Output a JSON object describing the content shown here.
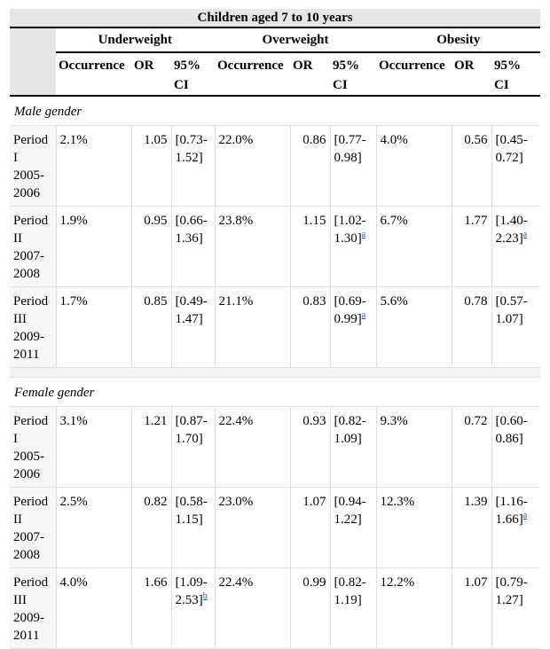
{
  "table": {
    "title": "Children aged 7 to 10 years",
    "groups": [
      "Underweight",
      "Overweight",
      "Obesity"
    ],
    "subheaders": [
      "Occurrence",
      "OR",
      "95% CI"
    ],
    "sections": [
      {
        "label": "Male gender",
        "rows": [
          {
            "period": "Period I 2005-2006",
            "uw": {
              "occ": "2.1%",
              "or": "1.05",
              "ci": "[0.73-1.52]",
              "fn": ""
            },
            "ow": {
              "occ": "22.0%",
              "or": "0.86",
              "ci": "[0.77-0.98]",
              "fn": ""
            },
            "ob": {
              "occ": "4.0%",
              "or": "0.56",
              "ci": "[0.45-0.72]",
              "fn": ""
            }
          },
          {
            "period": "Period II 2007-2008",
            "uw": {
              "occ": "1.9%",
              "or": "0.95",
              "ci": "[0.66-1.36]",
              "fn": ""
            },
            "ow": {
              "occ": "23.8%",
              "or": "1.15",
              "ci": "[1.02-1.30]",
              "fn": "a"
            },
            "ob": {
              "occ": "6.7%",
              "or": "1.77",
              "ci": "[1.40-2.23]",
              "fn": "a"
            }
          },
          {
            "period": "Period III 2009-2011",
            "uw": {
              "occ": "1.7%",
              "or": "0.85",
              "ci": "[0.49-1.47]",
              "fn": ""
            },
            "ow": {
              "occ": "21.1%",
              "or": "0.83",
              "ci": "[0.69-0.99]",
              "fn": "a"
            },
            "ob": {
              "occ": "5.6%",
              "or": "0.78",
              "ci": "[0.57-1.07]",
              "fn": ""
            }
          }
        ]
      },
      {
        "label": "Female gender",
        "rows": [
          {
            "period": "Period I 2005-2006",
            "uw": {
              "occ": "3.1%",
              "or": "1.21",
              "ci": "[0.87-1.70]",
              "fn": ""
            },
            "ow": {
              "occ": "22.4%",
              "or": "0.93",
              "ci": "[0.82-1.09]",
              "fn": ""
            },
            "ob": {
              "occ": "9.3%",
              "or": "0.72",
              "ci": "[0.60-0.86]",
              "fn": ""
            }
          },
          {
            "period": "Period II 2007-2008",
            "uw": {
              "occ": "2.5%",
              "or": "0.82",
              "ci": "[0.58-1.15]",
              "fn": ""
            },
            "ow": {
              "occ": "23.0%",
              "or": "1.07",
              "ci": "[0.94-1.22]",
              "fn": ""
            },
            "ob": {
              "occ": "12.3%",
              "or": "1.39",
              "ci": "[1.16-1.66]",
              "fn": "a"
            }
          },
          {
            "period": "Period III 2009-2011",
            "uw": {
              "occ": "4.0%",
              "or": "1.66",
              "ci": "[1.09-2.53]",
              "fn": "b"
            },
            "ow": {
              "occ": "22.4%",
              "or": "0.99",
              "ci": "[0.82-1.19]",
              "fn": ""
            },
            "ob": {
              "occ": "12.2%",
              "or": "1.07",
              "ci": "[0.79-1.27]",
              "fn": ""
            }
          }
        ]
      }
    ]
  }
}
